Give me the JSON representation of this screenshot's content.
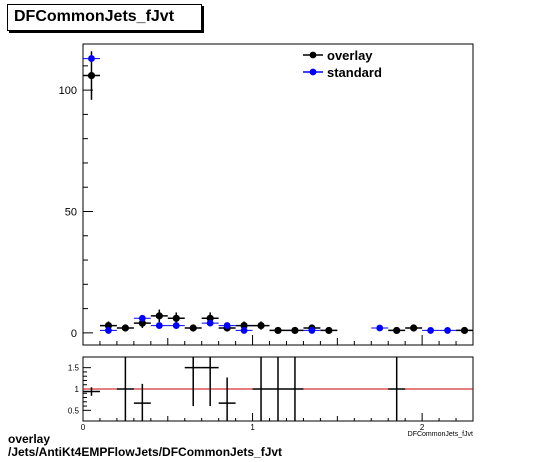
{
  "title": "DFCommonJets_fJvt",
  "footer": {
    "line1": "overlay",
    "line2": "/Jets/AntiKt4EMPFlowJets/DFCommonJets_fJvt"
  },
  "chart_data": [
    {
      "type": "scatter",
      "title": "DFCommonJets_fJvt",
      "xlim": [
        0,
        2.3
      ],
      "ylim": [
        -5,
        119
      ],
      "yticks": [
        0,
        50,
        100
      ],
      "grid": false,
      "legend_position": "top-right",
      "legend": [
        "overlay",
        "standard"
      ],
      "series": [
        {
          "name": "overlay",
          "color": "#000000",
          "points": [
            {
              "x": 0.05,
              "y": 106,
              "err": 10
            },
            {
              "x": 0.15,
              "y": 3,
              "err": 1.7
            },
            {
              "x": 0.25,
              "y": 2,
              "err": 1.4
            },
            {
              "x": 0.35,
              "y": 4,
              "err": 2
            },
            {
              "x": 0.45,
              "y": 7,
              "err": 2.6
            },
            {
              "x": 0.55,
              "y": 6,
              "err": 2.4
            },
            {
              "x": 0.65,
              "y": 2,
              "err": 1.4
            },
            {
              "x": 0.75,
              "y": 6,
              "err": 2.4
            },
            {
              "x": 0.85,
              "y": 2,
              "err": 1.4
            },
            {
              "x": 0.95,
              "y": 3,
              "err": 1.7
            },
            {
              "x": 1.05,
              "y": 3,
              "err": 1.7
            },
            {
              "x": 1.15,
              "y": 1,
              "err": 1
            },
            {
              "x": 1.25,
              "y": 1,
              "err": 1
            },
            {
              "x": 1.35,
              "y": 2,
              "err": 1.4
            },
            {
              "x": 1.45,
              "y": 1,
              "err": 1
            },
            {
              "x": 1.85,
              "y": 1,
              "err": 1
            },
            {
              "x": 1.95,
              "y": 2,
              "err": 1.4
            },
            {
              "x": 2.25,
              "y": 1,
              "err": 1
            }
          ]
        },
        {
          "name": "standard",
          "color": "#0000ff",
          "points": [
            {
              "x": 0.05,
              "y": 113
            },
            {
              "x": 0.15,
              "y": 1
            },
            {
              "x": 0.35,
              "y": 6
            },
            {
              "x": 0.45,
              "y": 3
            },
            {
              "x": 0.55,
              "y": 3
            },
            {
              "x": 0.75,
              "y": 4
            },
            {
              "x": 0.85,
              "y": 3
            },
            {
              "x": 0.95,
              "y": 1
            },
            {
              "x": 1.35,
              "y": 1
            },
            {
              "x": 1.75,
              "y": 2
            },
            {
              "x": 2.05,
              "y": 1
            },
            {
              "x": 2.15,
              "y": 1
            }
          ]
        }
      ]
    },
    {
      "type": "scatter",
      "title": "",
      "xlim": [
        0,
        2.3
      ],
      "ylim": [
        0.25,
        1.75
      ],
      "xticks": [
        0,
        1,
        2
      ],
      "yticks": [
        0.5,
        1,
        1.5
      ],
      "xlabel": "DFCommonJets_fJvt",
      "reference_line": {
        "y": 1,
        "color": "#cc0000"
      },
      "series": [
        {
          "name": "",
          "color": "#000000",
          "points": [
            {
              "x": 0.05,
              "y": 0.94,
              "err": 0.1
            },
            {
              "x": 0.25,
              "y": 1.0,
              "err": 1.0
            },
            {
              "x": 0.35,
              "y": 0.67,
              "err": 0.45
            },
            {
              "x": 0.65,
              "y": 1.5,
              "err": 0.9
            },
            {
              "x": 0.75,
              "y": 1.5,
              "err": 0.9
            },
            {
              "x": 0.85,
              "y": 0.67,
              "err": 0.6
            },
            {
              "x": 1.05,
              "y": 1.0,
              "err": 1.0
            },
            {
              "x": 1.15,
              "y": 1.0,
              "err": 1.0
            },
            {
              "x": 1.25,
              "y": 1.0,
              "err": 1.0
            },
            {
              "x": 1.85,
              "y": 1.0,
              "err": 1.0
            }
          ]
        }
      ]
    }
  ]
}
